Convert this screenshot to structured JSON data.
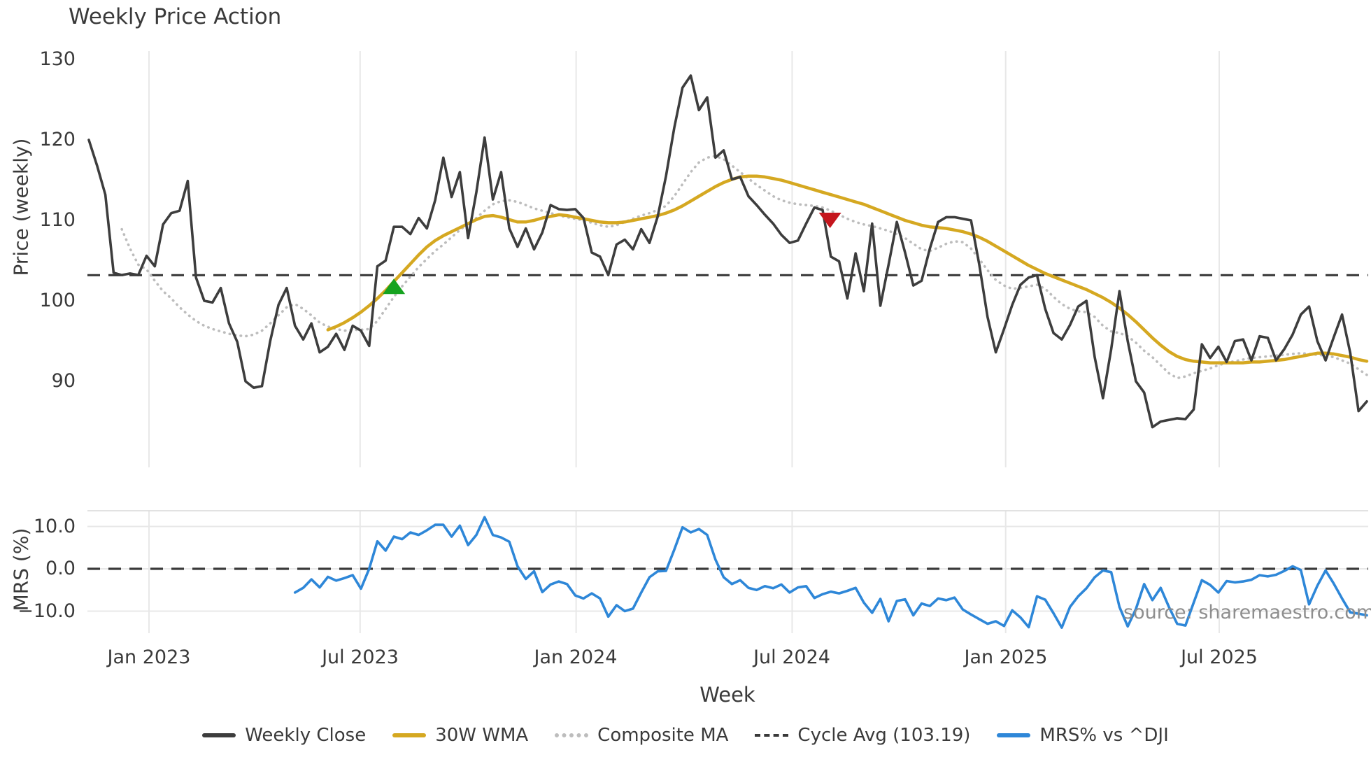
{
  "title": "Weekly Price Action",
  "watermark": "source: sharemaestro.com",
  "colors": {
    "weekly_close": "#3d3d3d",
    "wma": "#d5a821",
    "composite": "#bdbdbd",
    "cycle_avg": "#3a3a3a",
    "mrs": "#2e87d8",
    "buy_marker": "#16a320",
    "sell_marker": "#c5161d",
    "grid": "#e8e8e8",
    "spine": "#d9d9d9",
    "text": "#3a3a3a",
    "watermark": "#8e8e8e",
    "background": "#ffffff"
  },
  "legend": {
    "items": [
      {
        "label": "Weekly Close",
        "style": "solid",
        "color": "#3d3d3d"
      },
      {
        "label": "30W WMA",
        "style": "solid",
        "color": "#d5a821"
      },
      {
        "label": "Composite MA",
        "style": "dotted",
        "color": "#bdbdbd"
      },
      {
        "label": "Cycle Avg (103.19)",
        "style": "dashed",
        "color": "#3a3a3a"
      },
      {
        "label": "MRS% vs ^DJI",
        "style": "solid",
        "color": "#2e87d8"
      }
    ]
  },
  "chart_data": {
    "type": "line",
    "title": "Weekly Price Action",
    "xlabel": "Week",
    "x_axis": {
      "unit": "weeks",
      "total_weeks": 156,
      "tick_labels": [
        "Jan 2023",
        "Jul 2023",
        "Jan 2024",
        "Jul 2024",
        "Jan 2025",
        "Jul 2025"
      ],
      "tick_weeks": [
        7.3,
        32.9,
        59.1,
        85.3,
        111.2,
        137.1
      ],
      "grid": true
    },
    "panels": [
      {
        "name": "price",
        "ylabel": "Price (weekly)",
        "yticks": [
          130,
          120,
          110,
          100,
          90
        ],
        "ytick_labels": [
          "130",
          "120",
          "110",
          "100",
          "90"
        ],
        "ylim": [
          79.6,
          131.1
        ],
        "cycle_avg_value": 103.19,
        "series": [
          {
            "name": "Weekly Close",
            "style": "solid",
            "width": 3.6,
            "color": "#3d3d3d",
            "start_week": 0,
            "values": [
              120.0,
              116.8,
              113.2,
              103.5,
              103.2,
              103.4,
              103.2,
              105.6,
              104.3,
              109.5,
              110.9,
              111.2,
              114.9,
              102.9,
              100.0,
              99.8,
              101.6,
              97.2,
              94.9,
              90.0,
              89.2,
              89.4,
              95.0,
              99.5,
              101.6,
              96.9,
              95.2,
              97.2,
              93.6,
              94.3,
              95.9,
              93.9,
              96.9,
              96.3,
              94.4,
              104.3,
              105.0,
              109.2,
              109.2,
              108.3,
              110.3,
              109.0,
              112.5,
              117.8,
              112.9,
              116.0,
              107.8,
              113.5,
              120.3,
              112.6,
              116.0,
              109.0,
              106.7,
              109.0,
              106.4,
              108.5,
              111.9,
              111.4,
              111.3,
              111.4,
              110.3,
              106.0,
              105.5,
              103.2,
              107.0,
              107.6,
              106.4,
              108.9,
              107.2,
              110.5,
              115.5,
              121.5,
              126.5,
              128.0,
              123.7,
              125.3,
              117.8,
              118.7,
              115.1,
              115.4,
              113.0,
              111.9,
              110.7,
              109.6,
              108.2,
              107.2,
              107.5,
              109.6,
              111.6,
              111.3,
              105.5,
              104.9,
              100.3,
              105.9,
              101.2,
              109.6,
              99.4,
              104.5,
              109.8,
              106.0,
              101.9,
              102.5,
              106.5,
              109.8,
              110.4,
              110.4,
              110.2,
              110.0,
              104.5,
              98.0,
              93.6,
              96.5,
              99.5,
              102.0,
              102.9,
              103.2,
              99.0,
              96.0,
              95.2,
              97.0,
              99.3,
              100.0,
              93.0,
              87.9,
              94.0,
              101.2,
              95.0,
              90.0,
              88.6,
              84.3,
              85.0,
              85.2,
              85.4,
              85.3,
              86.5,
              94.6,
              92.9,
              94.3,
              92.4,
              95.0,
              95.2,
              92.6,
              95.6,
              95.4,
              92.6,
              94.0,
              95.8,
              98.3,
              99.3,
              95.0,
              92.6,
              95.5,
              98.3,
              93.5,
              86.3,
              87.5
            ]
          },
          {
            "name": "30W WMA",
            "style": "solid",
            "width": 4.5,
            "color": "#d5a821",
            "start_week": 29,
            "values": [
              96.4,
              96.8,
              97.3,
              97.9,
              98.6,
              99.4,
              100.3,
              101.3,
              102.4,
              103.5,
              104.6,
              105.7,
              106.7,
              107.5,
              108.1,
              108.6,
              109.1,
              109.6,
              110.1,
              110.5,
              110.6,
              110.4,
              110.1,
              109.8,
              109.8,
              110.0,
              110.3,
              110.5,
              110.7,
              110.6,
              110.4,
              110.2,
              110.0,
              109.8,
              109.7,
              109.7,
              109.8,
              110.0,
              110.2,
              110.4,
              110.6,
              110.9,
              111.3,
              111.8,
              112.4,
              113.0,
              113.6,
              114.2,
              114.7,
              115.1,
              115.4,
              115.5,
              115.5,
              115.4,
              115.2,
              115.0,
              114.7,
              114.4,
              114.1,
              113.8,
              113.5,
              113.2,
              112.9,
              112.6,
              112.3,
              112.0,
              111.6,
              111.2,
              110.8,
              110.4,
              110.0,
              109.7,
              109.4,
              109.2,
              109.1,
              109.0,
              108.8,
              108.6,
              108.3,
              107.9,
              107.4,
              106.8,
              106.2,
              105.6,
              105.0,
              104.4,
              103.9,
              103.4,
              103.0,
              102.6,
              102.2,
              101.8,
              101.4,
              100.9,
              100.4,
              99.8,
              99.1,
              98.3,
              97.4,
              96.4,
              95.4,
              94.5,
              93.7,
              93.1,
              92.7,
              92.5,
              92.4,
              92.3,
              92.3,
              92.3,
              92.3,
              92.3,
              92.4,
              92.4,
              92.5,
              92.6,
              92.7,
              92.9,
              93.1,
              93.3,
              93.5,
              93.5,
              93.4,
              93.2,
              93.0,
              92.7,
              92.5
            ]
          },
          {
            "name": "Composite MA",
            "style": "dotted",
            "width": 3.6,
            "color": "#bdbdbd",
            "start_week": 4,
            "values": [
              108.9,
              106.5,
              104.5,
              103.9,
              102.5,
              101.2,
              100.3,
              99.2,
              98.3,
              97.5,
              96.9,
              96.5,
              96.2,
              95.9,
              95.7,
              95.6,
              95.8,
              96.3,
              97.2,
              98.2,
              99.2,
              99.6,
              99.0,
              98.2,
              97.3,
              96.8,
              96.5,
              96.3,
              96.4,
              96.4,
              96.5,
              97.5,
              99.0,
              100.5,
              101.8,
              103.0,
              104.2,
              105.2,
              106.2,
              107.0,
              107.9,
              108.8,
              109.6,
              110.3,
              111.2,
              112.0,
              112.4,
              112.5,
              112.3,
              111.9,
              111.5,
              111.2,
              110.9,
              110.6,
              110.4,
              110.2,
              110.0,
              109.7,
              109.4,
              109.2,
              109.4,
              109.8,
              110.2,
              110.6,
              110.9,
              111.3,
              111.8,
              113.0,
              114.5,
              116.0,
              117.2,
              117.8,
              118.0,
              117.6,
              116.8,
              116.0,
              115.2,
              114.4,
              113.7,
              113.0,
              112.5,
              112.2,
              112.0,
              111.9,
              111.8,
              111.6,
              111.2,
              110.7,
              110.2,
              109.8,
              109.5,
              109.3,
              109.0,
              108.7,
              108.3,
              107.8,
              107.1,
              106.4,
              106.2,
              106.6,
              107.1,
              107.4,
              107.3,
              106.5,
              105.2,
              103.8,
              102.6,
              101.9,
              101.5,
              101.6,
              101.8,
              102.0,
              101.5,
              100.5,
              99.6,
              99.0,
              98.7,
              98.6,
              98.0,
              96.9,
              96.2,
              96.0,
              95.6,
              94.8,
              93.8,
              93.0,
              92.0,
              91.0,
              90.4,
              90.6,
              91.0,
              91.3,
              91.6,
              92.0,
              92.3,
              92.5,
              92.7,
              92.9,
              93.0,
              93.1,
              93.2,
              93.3,
              93.4,
              93.5,
              93.4,
              93.3,
              93.2,
              93.0,
              92.6,
              92.2,
              91.5,
              90.8
            ]
          }
        ],
        "markers": [
          {
            "shape": "triangle-up",
            "name": "buy-signal",
            "color": "#16a320",
            "week": 37.0,
            "value": 101.8
          },
          {
            "shape": "triangle-down",
            "name": "sell-signal",
            "color": "#c5161d",
            "week": 89.9,
            "value": 110.0
          }
        ]
      },
      {
        "name": "mrs",
        "ylabel": "MRS (%)",
        "yticks": [
          10.0,
          0.0,
          -10.0
        ],
        "ytick_labels": [
          "10.0",
          "0.0",
          "−10.0"
        ],
        "ylim": [
          -15.2,
          13.7
        ],
        "zero_dashed_line": true,
        "grid_horizontal": true,
        "series": [
          {
            "name": "MRS% vs ^DJI",
            "style": "solid",
            "width": 3.6,
            "color": "#2e87d8",
            "start_week": 25,
            "values": [
              -5.6,
              -4.5,
              -2.5,
              -4.4,
              -1.9,
              -2.8,
              -2.2,
              -1.5,
              -4.7,
              0.0,
              6.5,
              4.3,
              7.6,
              7.0,
              8.6,
              8.0,
              9.1,
              10.4,
              10.4,
              7.6,
              10.2,
              5.6,
              8.0,
              12.2,
              8.0,
              7.4,
              6.4,
              0.6,
              -2.4,
              -0.6,
              -5.5,
              -3.7,
              -3.0,
              -3.6,
              -6.3,
              -7.0,
              -5.8,
              -7.0,
              -11.3,
              -8.6,
              -10.0,
              -9.4,
              -5.6,
              -2.0,
              -0.6,
              -0.5,
              4.5,
              9.8,
              8.6,
              9.4,
              8.0,
              2.2,
              -2.0,
              -3.6,
              -2.7,
              -4.5,
              -5.0,
              -4.1,
              -4.6,
              -3.7,
              -5.6,
              -4.4,
              -4.1,
              -6.9,
              -6.0,
              -5.4,
              -5.8,
              -5.2,
              -4.5,
              -8.0,
              -10.4,
              -7.1,
              -12.4,
              -7.6,
              -7.2,
              -11.0,
              -8.2,
              -8.8,
              -7.0,
              -7.4,
              -6.8,
              -9.6,
              -10.8,
              -11.9,
              -13.0,
              -12.4,
              -13.5,
              -9.8,
              -11.5,
              -13.8,
              -6.5,
              -7.3,
              -10.5,
              -13.9,
              -9.0,
              -6.5,
              -4.6,
              -2.0,
              -0.4,
              -0.8,
              -9.0,
              -13.6,
              -9.5,
              -3.6,
              -7.4,
              -4.5,
              -9.0,
              -13.0,
              -13.4,
              -8.0,
              -2.7,
              -3.8,
              -5.6,
              -2.9,
              -3.2,
              -3.0,
              -2.6,
              -1.5,
              -1.8,
              -1.4,
              -0.5,
              0.6,
              -0.3,
              -8.4,
              -4.0,
              -0.4,
              -3.5,
              -7.0,
              -10.3,
              -10.6,
              -11.0
            ]
          }
        ]
      }
    ]
  }
}
